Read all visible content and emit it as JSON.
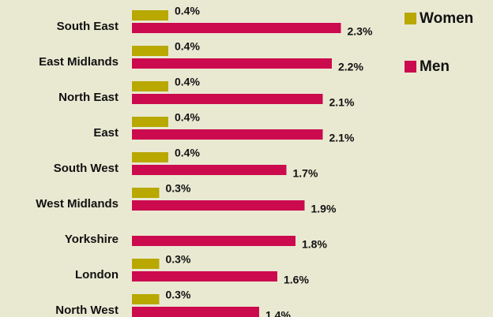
{
  "chart_data": {
    "type": "bar",
    "orientation": "horizontal",
    "categories": [
      "South East",
      "East Midlands",
      "North East",
      "East",
      "South West",
      "West Midlands",
      "Yorkshire",
      "London",
      "North West"
    ],
    "series": [
      {
        "name": "Women",
        "color": "#b8a800",
        "values": [
          0.4,
          0.4,
          0.4,
          0.4,
          0.4,
          0.3,
          null,
          0.3,
          0.3
        ],
        "value_labels": [
          "0.4%",
          "0.4%",
          "0.4%",
          "0.4%",
          "0.4%",
          "0.3%",
          null,
          "0.3%",
          "0.3%"
        ]
      },
      {
        "name": "Men",
        "color": "#cc0a4e",
        "values": [
          2.3,
          2.2,
          2.1,
          2.1,
          1.7,
          1.9,
          1.8,
          1.6,
          1.4
        ],
        "value_labels": [
          "2.3%",
          "2.2%",
          "2.1%",
          "2.1%",
          "1.7%",
          "1.9%",
          "1.8%",
          "1.6%",
          "1.4%"
        ]
      }
    ],
    "xlim": [
      0,
      2.5
    ],
    "legend": "top-right"
  }
}
